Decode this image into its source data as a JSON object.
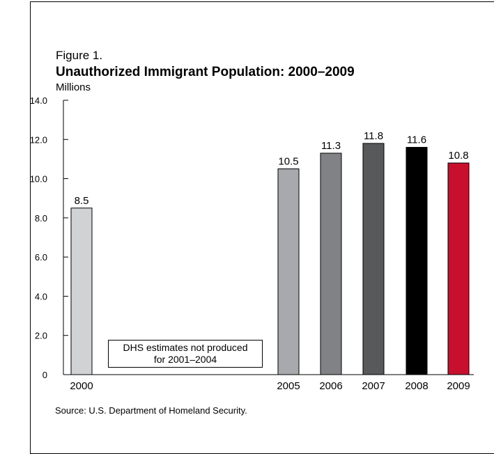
{
  "figure": {
    "label": "Figure 1.",
    "title": "Unauthorized Immigrant Population: 2000–2009",
    "unit": "Millions",
    "note_line1": "DHS estimates not produced",
    "note_line2": "for 2001–2004",
    "source": "Source: U.S. Department of Homeland Security."
  },
  "chart_data": {
    "type": "bar",
    "title": "Unauthorized Immigrant Population: 2000–2009",
    "ylabel": "Millions",
    "xlabel": "",
    "ylim": [
      0,
      14
    ],
    "yticks": [
      "0",
      "2.0",
      "4.0",
      "6.0",
      "8.0",
      "10.0",
      "12.0",
      "14.0"
    ],
    "ytick_values": [
      0,
      2,
      4,
      6,
      8,
      10,
      12,
      14
    ],
    "categories": [
      "2000",
      "2005",
      "2006",
      "2007",
      "2008",
      "2009"
    ],
    "values": [
      8.5,
      10.5,
      11.3,
      11.8,
      11.6,
      10.8
    ],
    "value_labels": [
      "8.5",
      "10.5",
      "11.3",
      "11.8",
      "11.6",
      "10.8"
    ],
    "colors": [
      "#d1d2d4",
      "#a7a9ac",
      "#808285",
      "#58595b",
      "#000000",
      "#c8102e"
    ],
    "grid": false,
    "legend": "none"
  }
}
